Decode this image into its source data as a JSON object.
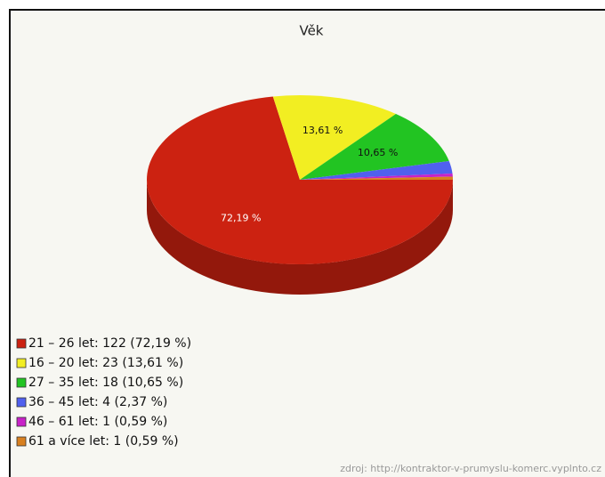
{
  "chart_data": {
    "type": "pie",
    "title": "Věk",
    "categories": [
      "21 – 26 let: 122 (72,19 %)",
      "16 – 20 let: 23 (13,61 %)",
      "27 – 35 let: 18 (10,65 %)",
      "36 – 45 let: 4 (2,37 %)",
      "46 – 61 let: 1 (0,59 %)",
      "61 a více let: 1 (0,59 %)"
    ],
    "values": [
      72.19,
      13.61,
      10.65,
      2.37,
      0.59,
      0.59
    ],
    "value_labels": [
      "72,19 %",
      "13,61 %",
      "10,65 %",
      null,
      null,
      null
    ],
    "colors": [
      "#cc2211",
      "#f2ee22",
      "#22c422",
      "#5060ee",
      "#c822c8",
      "#d88020"
    ],
    "source": "zdroj: http://kontraktor-v-prumyslu-komerc.vyplnto.cz"
  }
}
